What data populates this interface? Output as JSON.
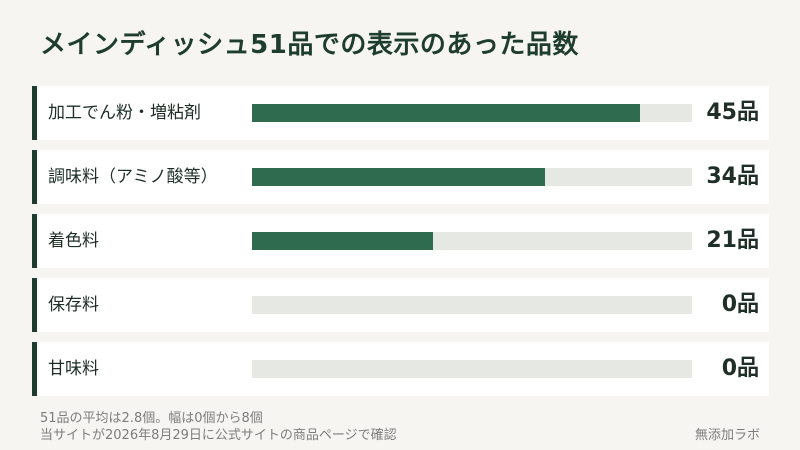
{
  "chart_data": {
    "type": "bar",
    "orientation": "horizontal",
    "title": "メインディッシュ51品での表示のあった品数",
    "categories": [
      "加工でん粉・増粘剤",
      "調味料（アミノ酸等）",
      "着色料",
      "保存料",
      "甘味料"
    ],
    "values": [
      45,
      34,
      21,
      0,
      0
    ],
    "value_labels": [
      "45品",
      "34品",
      "21品",
      "0品",
      "0品"
    ],
    "xlim": [
      0,
      51
    ],
    "grid": false,
    "legend": "none"
  },
  "notes": {
    "summary": "51品の平均は2.8個。幅は0個から8個",
    "source": "当サイトが2026年8月29日に公式サイトの商品ページで確認"
  },
  "brand": "無添加ラボ",
  "colors": {
    "background": "#f6f5f1",
    "bar": "#2e6b4f",
    "track": "#e6e8e3",
    "accent": "#1f3d2e",
    "title": "#1f3d2e"
  }
}
